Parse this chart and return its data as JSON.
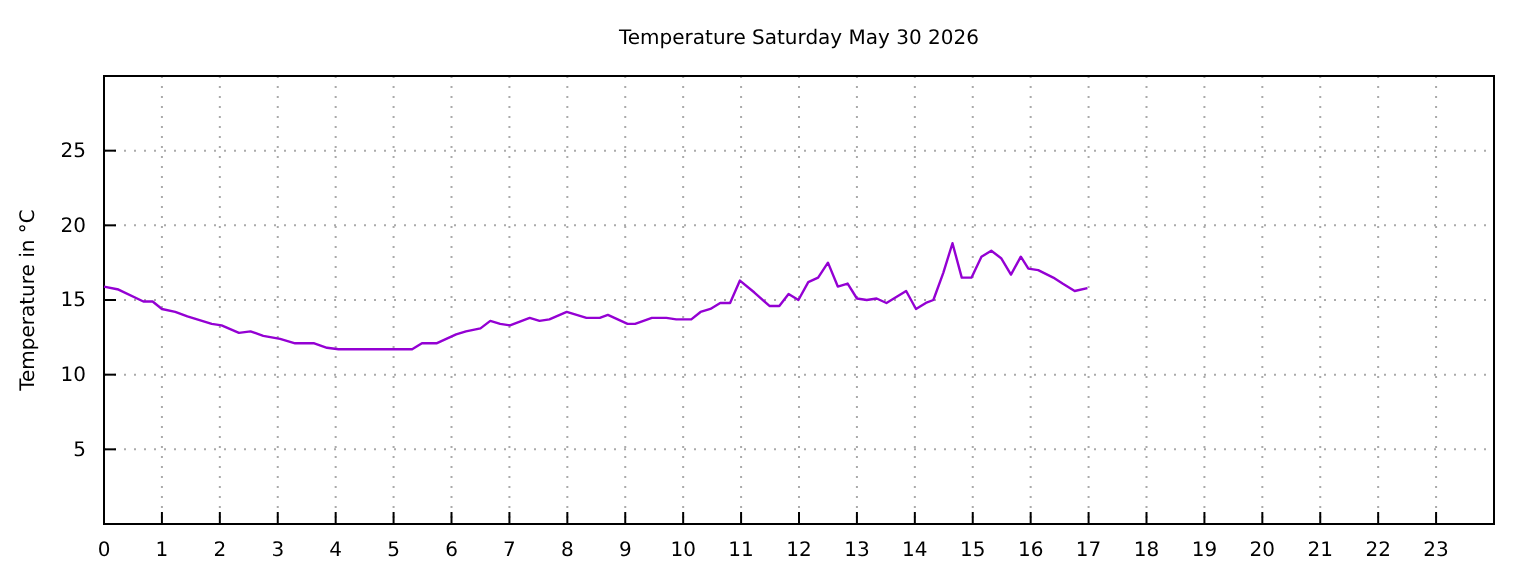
{
  "chart_data": {
    "type": "line",
    "title": "Temperature Saturday May 30 2026",
    "ylabel": "Temperature in °C",
    "xlim": [
      0,
      24
    ],
    "ylim": [
      0,
      30
    ],
    "xticks": [
      0,
      1,
      2,
      3,
      4,
      5,
      6,
      7,
      8,
      9,
      10,
      11,
      12,
      13,
      14,
      15,
      16,
      17,
      18,
      19,
      20,
      21,
      22,
      23
    ],
    "yticks": [
      {
        "value": 0,
        "label": null
      },
      5,
      10,
      15,
      20,
      25,
      {
        "value": 30,
        "label": null
      }
    ],
    "grid": true,
    "line_style": "solid",
    "marker": "none",
    "series": [
      {
        "color": "#9400d3",
        "x": [
          0,
          0.25,
          0.68,
          0.84,
          1.0,
          1.23,
          1.44,
          1.86,
          2.03,
          2.33,
          2.53,
          2.75,
          3.04,
          3.3,
          3.63,
          3.85,
          4.05,
          4.48,
          4.73,
          4.98,
          5.32,
          5.49,
          5.74,
          6.08,
          6.25,
          6.5,
          6.67,
          6.84,
          7.01,
          7.35,
          7.52,
          7.69,
          7.99,
          8.33,
          8.56,
          8.7,
          9.04,
          9.17,
          9.46,
          9.71,
          9.88,
          10.14,
          10.3,
          10.47,
          10.64,
          10.81,
          10.98,
          11.23,
          11.49,
          11.66,
          11.82,
          11.99,
          12.16,
          12.33,
          12.5,
          12.67,
          12.84,
          13.0,
          13.17,
          13.34,
          13.51,
          13.85,
          14.02,
          14.19,
          14.32,
          14.49,
          14.65,
          14.81,
          14.98,
          15.15,
          15.32,
          15.49,
          15.66,
          15.83,
          15.96,
          16.13,
          16.39,
          16.55,
          16.76,
          16.98
        ],
        "values": [
          15.9,
          15.7,
          14.9,
          14.9,
          14.4,
          14.2,
          13.9,
          13.4,
          13.3,
          12.8,
          12.9,
          12.6,
          12.4,
          12.1,
          12.1,
          11.8,
          11.7,
          11.7,
          11.7,
          11.7,
          11.7,
          12.1,
          12.1,
          12.7,
          12.9,
          13.1,
          13.6,
          13.4,
          13.3,
          13.8,
          13.6,
          13.7,
          14.2,
          13.8,
          13.8,
          14.0,
          13.4,
          13.4,
          13.8,
          13.8,
          13.7,
          13.7,
          14.2,
          14.4,
          14.8,
          14.8,
          16.3,
          15.5,
          14.6,
          14.6,
          15.4,
          15.0,
          16.2,
          16.5,
          17.5,
          15.9,
          16.1,
          15.1,
          15.0,
          15.1,
          14.8,
          15.6,
          14.4,
          14.8,
          15.0,
          16.8,
          18.8,
          16.5,
          16.5,
          17.9,
          18.3,
          17.8,
          16.7,
          17.9,
          17.1,
          17.0,
          16.5,
          16.1,
          15.6,
          15.8
        ]
      }
    ]
  }
}
